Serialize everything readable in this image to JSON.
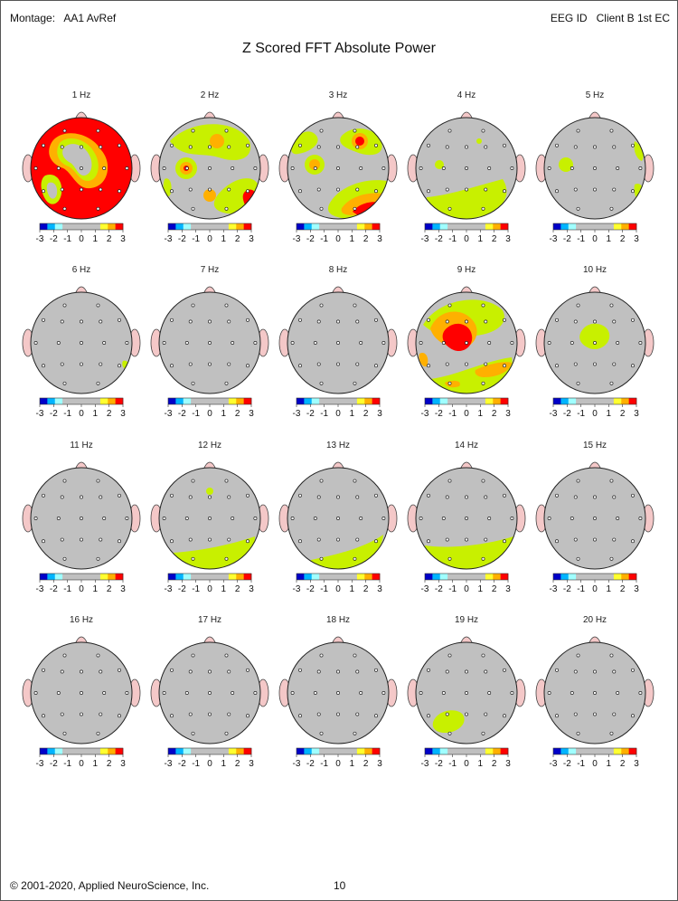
{
  "header": {
    "montage_label": "Montage:",
    "montage_value": "AA1 AvRef",
    "eeg_label": "EEG ID",
    "eeg_value": "Client B 1st EC"
  },
  "title": "Z Scored FFT Absolute Power",
  "scale": {
    "ticks": [
      "-3",
      "-2",
      "-1",
      "0",
      "1",
      "2",
      "3"
    ],
    "colors": [
      "#0000c8",
      "#00b4ff",
      "#a0ffff",
      "#c0c0c0",
      "#c0c0c0",
      "#c0c0c0",
      "#c0c0c0",
      "#c0c0c0",
      "#ffff30",
      "#ffb000",
      "#ff0000"
    ]
  },
  "colors": {
    "head_fill": "#c0c0c0",
    "ear_fill": "#f4c8c8",
    "nose_fill": "#f4c8c8",
    "yellow": "#c8f000",
    "orange": "#ffb000",
    "red": "#ff0000"
  },
  "maps": [
    {
      "label": "1 Hz",
      "level": "high"
    },
    {
      "label": "2 Hz",
      "level": "mixed"
    },
    {
      "label": "3 Hz",
      "level": "mixed"
    },
    {
      "label": "4 Hz",
      "level": "low"
    },
    {
      "label": "5 Hz",
      "level": "low"
    },
    {
      "label": "6 Hz",
      "level": "none"
    },
    {
      "label": "7 Hz",
      "level": "none"
    },
    {
      "label": "8 Hz",
      "level": "none"
    },
    {
      "label": "9 Hz",
      "level": "mixed"
    },
    {
      "label": "10 Hz",
      "level": "low"
    },
    {
      "label": "11 Hz",
      "level": "none"
    },
    {
      "label": "12 Hz",
      "level": "low"
    },
    {
      "label": "13 Hz",
      "level": "low"
    },
    {
      "label": "14 Hz",
      "level": "low"
    },
    {
      "label": "15 Hz",
      "level": "none"
    },
    {
      "label": "16 Hz",
      "level": "none"
    },
    {
      "label": "17 Hz",
      "level": "none"
    },
    {
      "label": "18 Hz",
      "level": "none"
    },
    {
      "label": "19 Hz",
      "level": "low"
    },
    {
      "label": "20 Hz",
      "level": "none"
    }
  ],
  "footer": {
    "copyright": "© 2001-2020, Applied NeuroScience, Inc.",
    "page_number": "10"
  }
}
